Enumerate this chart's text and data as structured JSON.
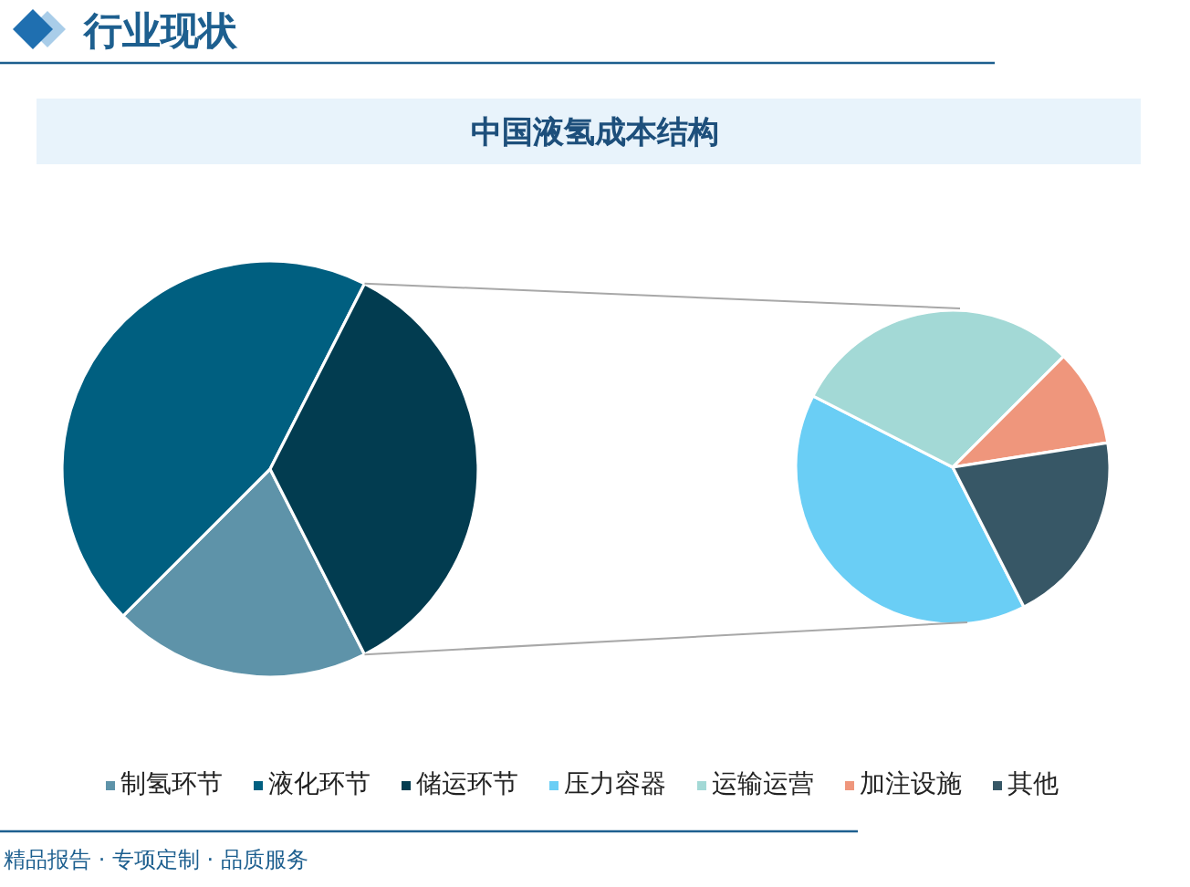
{
  "chart_data": [
    {
      "type": "pie",
      "title": "中国液氢成本结构",
      "categories": [
        "制氢环节",
        "液化环节",
        "储运环节"
      ],
      "values": [
        20,
        45,
        35
      ],
      "colors": [
        "#5e93a9",
        "#005f80",
        "#023c50"
      ],
      "legend": "bottom",
      "annotations": [
        "行业现状",
        "精品报告 · 专项定制 · 品质服务"
      ]
    },
    {
      "type": "pie",
      "categories": [
        "压力容器",
        "运输运营",
        "加注设施",
        "其他"
      ],
      "values": [
        40,
        30,
        10,
        20
      ],
      "colors": [
        "#6acef5",
        "#a3d9d6",
        "#ef967c",
        "#375766"
      ],
      "legend": "bottom"
    }
  ]
}
